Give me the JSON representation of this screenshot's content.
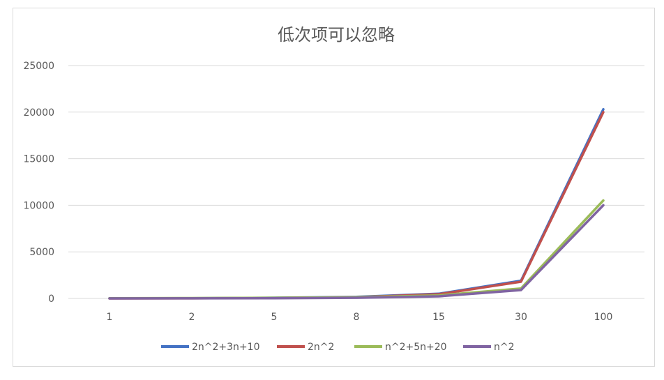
{
  "chart_data": {
    "type": "line",
    "title": "低次项可以忽略",
    "xlabel": "",
    "ylabel": "",
    "categories": [
      "1",
      "2",
      "5",
      "8",
      "15",
      "30",
      "100"
    ],
    "ylim": [
      0,
      25000
    ],
    "yticks": [
      0,
      5000,
      10000,
      15000,
      20000,
      25000
    ],
    "grid": true,
    "legend_position": "bottom",
    "series": [
      {
        "name": "2n^2+3n+10",
        "color": "#4472c4",
        "values": [
          15,
          24,
          75,
          162,
          505,
          1900,
          20310
        ]
      },
      {
        "name": "2n^2",
        "color": "#c0504d",
        "values": [
          2,
          8,
          50,
          128,
          450,
          1800,
          20000
        ]
      },
      {
        "name": "n^2+5n+20",
        "color": "#9bbb59",
        "values": [
          26,
          34,
          70,
          124,
          320,
          1070,
          10520
        ]
      },
      {
        "name": "n^2",
        "color": "#8064a2",
        "values": [
          1,
          4,
          25,
          64,
          225,
          900,
          10000
        ]
      }
    ]
  }
}
